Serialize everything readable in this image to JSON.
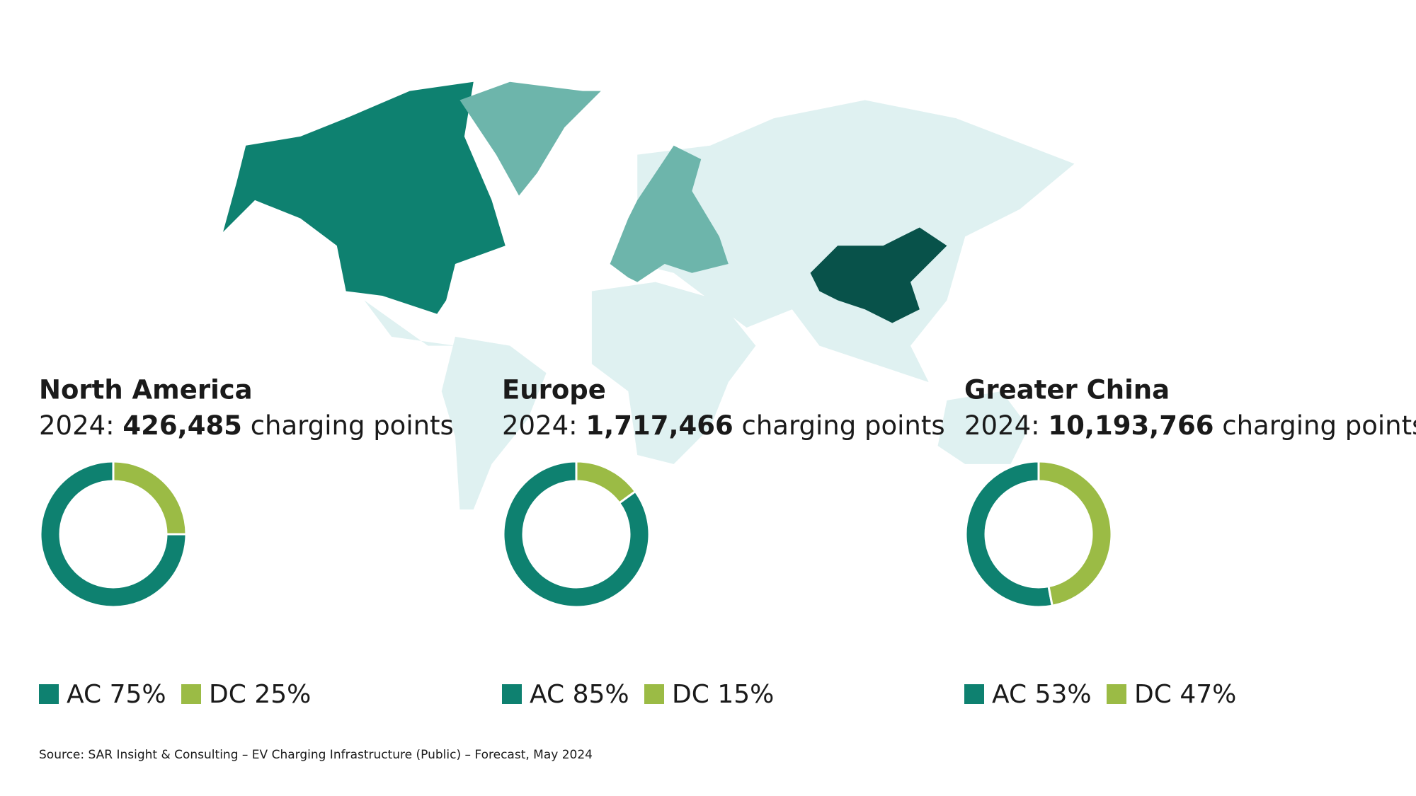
{
  "chart_data": [
    {
      "type": "pie",
      "title": "North America",
      "period": "2024:",
      "total": "426,485",
      "total_unit": "charging points",
      "categories": [
        "AC",
        "DC"
      ],
      "values": [
        75,
        25
      ],
      "value_labels": [
        "75%",
        "25%"
      ],
      "colors": [
        "#0e8170",
        "#9bbb45"
      ]
    },
    {
      "type": "pie",
      "title": "Europe",
      "period": "2024:",
      "total": "1,717,466",
      "total_unit": "charging points",
      "categories": [
        "AC",
        "DC"
      ],
      "values": [
        85,
        15
      ],
      "value_labels": [
        "85%",
        "15%"
      ],
      "colors": [
        "#0e8170",
        "#9bbb45"
      ]
    },
    {
      "type": "pie",
      "title": "Greater China",
      "period": "2024:",
      "total": "10,193,766",
      "total_unit": "charging points",
      "categories": [
        "AC",
        "DC"
      ],
      "values": [
        53,
        47
      ],
      "value_labels": [
        "53%",
        "47%"
      ],
      "colors": [
        "#0e8170",
        "#9bbb45"
      ]
    }
  ],
  "source": "Source: SAR Insight & Consulting – EV Charging Infrastructure (Public) – Forecast, May 2024"
}
